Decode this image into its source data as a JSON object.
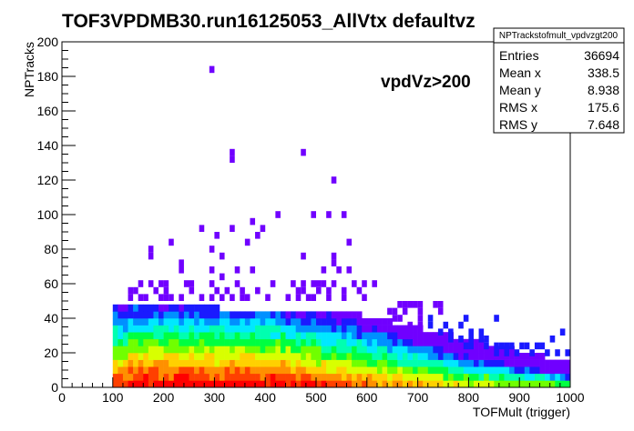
{
  "chart_data": {
    "type": "heatmap",
    "title": "TOF3VPDMB30.run16125053_AllVtx defaultvz",
    "xlabel": "TOFMult (trigger)",
    "ylabel": "NPTracks",
    "xlim": [
      0,
      1000
    ],
    "ylim": [
      0,
      200
    ],
    "x_ticks": [
      "0",
      "100",
      "200",
      "300",
      "400",
      "500",
      "600",
      "700",
      "800",
      "900",
      "1000"
    ],
    "y_ticks": [
      "0",
      "20",
      "40",
      "60",
      "80",
      "100",
      "120",
      "140",
      "160",
      "180",
      "200"
    ],
    "bin_width_x": 10,
    "bin_width_y": 4,
    "annotation": "vpdVz>200",
    "stats": {
      "name": "NPTrackstofmult_vpdvzgt200",
      "rows": [
        {
          "label": "Entries",
          "value": "36694"
        },
        {
          "label": "Mean x",
          "value": "338.5"
        },
        {
          "label": "Mean y",
          "value": "8.938"
        },
        {
          "label": "RMS x",
          "value": "175.6"
        },
        {
          "label": "RMS y",
          "value": "7.648"
        }
      ]
    },
    "grid": false,
    "legend": "none",
    "color_palette": [
      "#7000ff",
      "#1a1aff",
      "#0090ff",
      "#00e8ff",
      "#00ffb0",
      "#00ff40",
      "#70ff00",
      "#d8ff00",
      "#ffd000",
      "#ff9000",
      "#ff4000",
      "#ff0000"
    ],
    "sparse_points": [
      [
        290,
        182
      ],
      [
        330,
        134
      ],
      [
        330,
        130
      ],
      [
        470,
        134
      ],
      [
        530,
        118
      ],
      [
        370,
        94
      ],
      [
        420,
        98
      ],
      [
        490,
        98
      ],
      [
        520,
        98
      ],
      [
        550,
        98
      ],
      [
        270,
        90
      ],
      [
        330,
        90
      ],
      [
        300,
        86
      ],
      [
        380,
        86
      ],
      [
        390,
        90
      ],
      [
        210,
        82
      ],
      [
        360,
        82
      ],
      [
        170,
        78
      ],
      [
        290,
        78
      ],
      [
        560,
        82
      ],
      [
        170,
        74
      ],
      [
        310,
        74
      ],
      [
        470,
        74
      ],
      [
        530,
        74
      ],
      [
        230,
        70
      ],
      [
        530,
        70
      ],
      [
        230,
        66
      ],
      [
        290,
        66
      ],
      [
        340,
        66
      ],
      [
        370,
        66
      ],
      [
        310,
        62
      ],
      [
        510,
        66
      ],
      [
        540,
        66
      ],
      [
        560,
        66
      ],
      [
        150,
        58
      ],
      [
        170,
        58
      ],
      [
        190,
        58
      ],
      [
        200,
        58
      ],
      [
        240,
        58
      ],
      [
        250,
        58
      ],
      [
        290,
        58
      ],
      [
        340,
        58
      ],
      [
        410,
        58
      ],
      [
        450,
        58
      ],
      [
        470,
        58
      ],
      [
        490,
        58
      ],
      [
        500,
        58
      ],
      [
        510,
        58
      ],
      [
        530,
        58
      ],
      [
        570,
        58
      ],
      [
        590,
        58
      ],
      [
        610,
        58
      ],
      [
        130,
        54
      ],
      [
        140,
        54
      ],
      [
        180,
        54
      ],
      [
        200,
        54
      ],
      [
        250,
        54
      ],
      [
        300,
        54
      ],
      [
        320,
        54
      ],
      [
        350,
        54
      ],
      [
        380,
        54
      ],
      [
        460,
        54
      ],
      [
        470,
        54
      ],
      [
        500,
        54
      ],
      [
        520,
        54
      ],
      [
        550,
        54
      ],
      [
        580,
        54
      ],
      [
        130,
        50
      ],
      [
        150,
        50
      ],
      [
        160,
        50
      ],
      [
        190,
        50
      ],
      [
        200,
        50
      ],
      [
        210,
        50
      ],
      [
        230,
        50
      ],
      [
        270,
        50
      ],
      [
        290,
        50
      ],
      [
        310,
        50
      ],
      [
        330,
        50
      ],
      [
        350,
        50
      ],
      [
        360,
        50
      ],
      [
        400,
        50
      ],
      [
        440,
        50
      ],
      [
        460,
        50
      ],
      [
        480,
        50
      ],
      [
        490,
        50
      ],
      [
        520,
        50
      ],
      [
        550,
        50
      ],
      [
        590,
        50
      ],
      [
        660,
        46
      ],
      [
        670,
        46
      ],
      [
        680,
        46
      ],
      [
        690,
        46
      ],
      [
        700,
        46
      ],
      [
        730,
        46
      ],
      [
        740,
        46
      ],
      [
        640,
        42
      ],
      [
        650,
        42
      ],
      [
        670,
        42
      ],
      [
        700,
        42
      ],
      [
        740,
        42
      ],
      [
        650,
        38
      ],
      [
        660,
        38
      ],
      [
        700,
        38
      ],
      [
        720,
        38
      ],
      [
        790,
        38
      ],
      [
        850,
        38
      ],
      [
        680,
        34
      ],
      [
        700,
        34
      ],
      [
        720,
        34
      ],
      [
        750,
        34
      ],
      [
        780,
        34
      ],
      [
        740,
        30
      ],
      [
        760,
        30
      ],
      [
        800,
        30
      ],
      [
        820,
        30
      ],
      [
        760,
        26
      ],
      [
        780,
        26
      ],
      [
        800,
        26
      ],
      [
        820,
        26
      ],
      [
        830,
        26
      ],
      [
        960,
        26
      ],
      [
        980,
        30
      ],
      [
        790,
        22
      ],
      [
        800,
        22
      ],
      [
        830,
        22
      ],
      [
        850,
        22
      ],
      [
        860,
        22
      ],
      [
        870,
        22
      ],
      [
        880,
        22
      ],
      [
        900,
        22
      ],
      [
        910,
        22
      ],
      [
        940,
        22
      ],
      [
        930,
        22
      ],
      [
        850,
        18
      ],
      [
        870,
        18
      ],
      [
        890,
        18
      ],
      [
        920,
        18
      ],
      [
        950,
        18
      ],
      [
        970,
        18
      ],
      [
        990,
        18
      ]
    ]
  }
}
